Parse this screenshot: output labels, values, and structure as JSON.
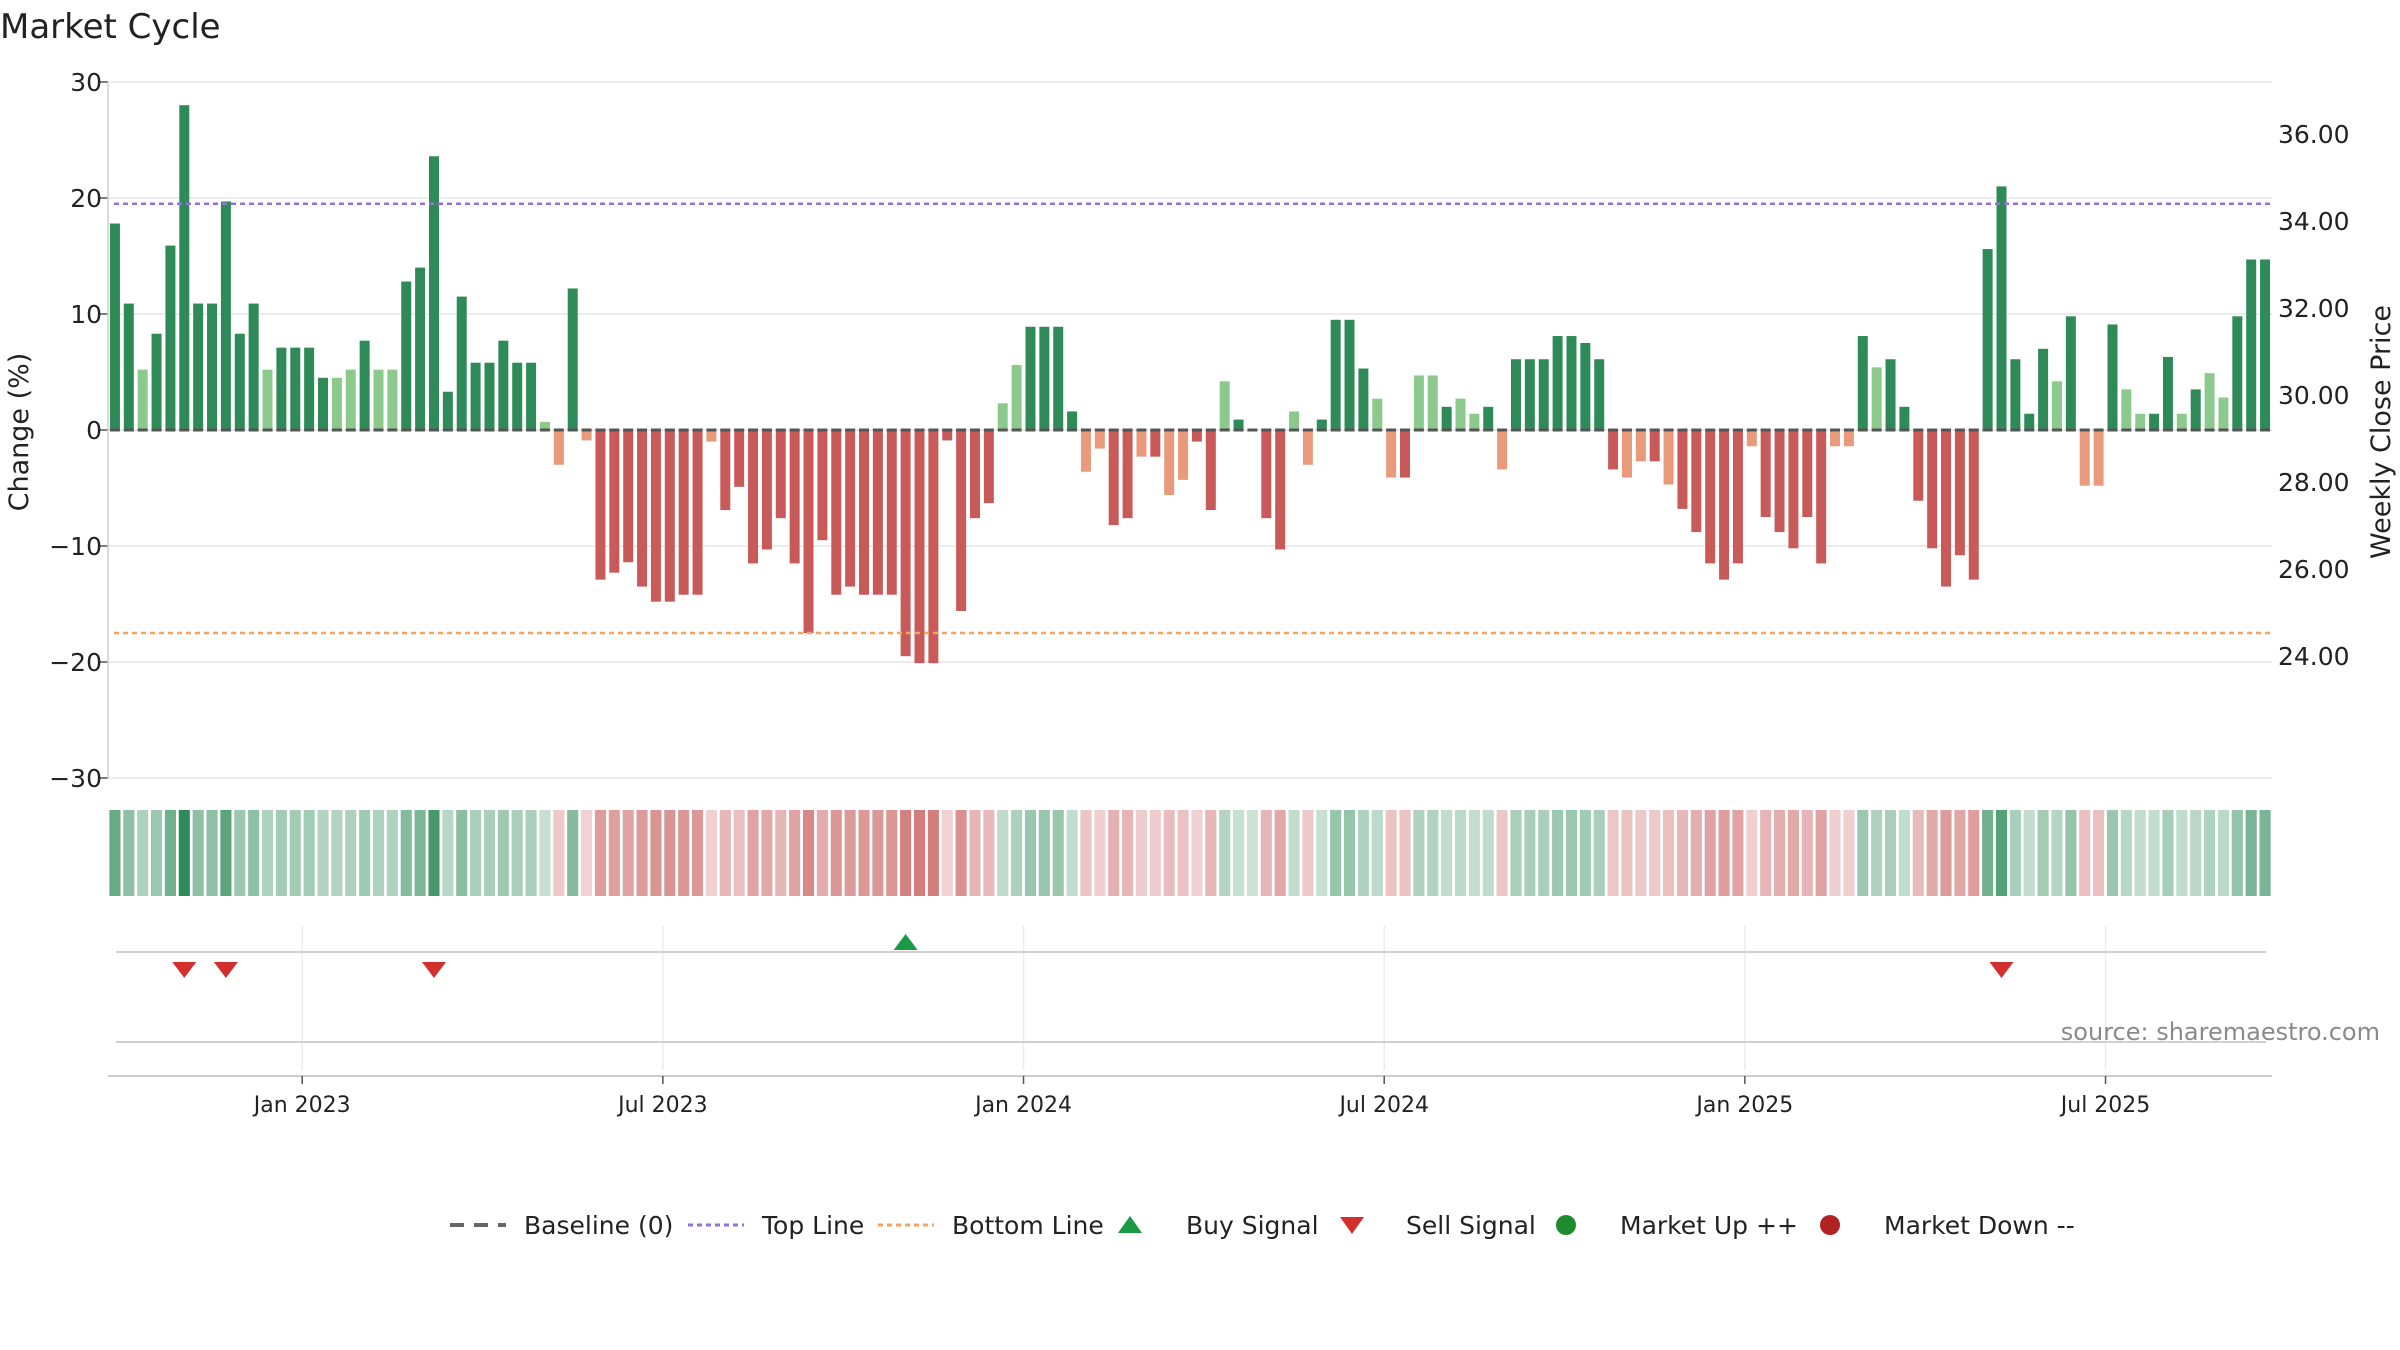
{
  "chart_data": {
    "type": "bar",
    "title": "Market Cycle",
    "ylabel": "Change (%)",
    "y2label": "Weekly Close Price",
    "ylim": [
      -30,
      30
    ],
    "y2lim": [
      21.2,
      37.2
    ],
    "y_ticks": [
      30,
      20,
      10,
      0,
      -10,
      -20,
      -30
    ],
    "y_tick_labels": [
      "30",
      "20",
      "10",
      "0",
      "−10",
      "−20",
      "−30"
    ],
    "y2_ticks": [
      36,
      34,
      32,
      30,
      28,
      26,
      24
    ],
    "y2_tick_labels": [
      "36.00",
      "34.00",
      "32.00",
      "30.00",
      "28.00",
      "26.00",
      "24.00"
    ],
    "x_tick_labels": [
      "Jan 2023",
      "Jul 2023",
      "Jan 2024",
      "Jul 2024",
      "Jan 2025",
      "Jul 2025"
    ],
    "x_tick_bar_index": [
      14,
      40,
      66,
      92,
      118,
      144
    ],
    "top_line": 19.5,
    "bottom_line": -17.5,
    "values": [
      17.8,
      10.9,
      5.2,
      8.3,
      15.9,
      28,
      10.9,
      10.9,
      19.7,
      8.3,
      10.9,
      5.2,
      7.1,
      7.1,
      7.1,
      4.5,
      4.5,
      5.2,
      7.7,
      5.2,
      5.2,
      12.8,
      14,
      23.6,
      3.3,
      11.5,
      5.8,
      5.8,
      7.7,
      5.8,
      5.8,
      0.7,
      -3,
      12.2,
      -0.9,
      -12.9,
      -12.3,
      -11.4,
      -13.5,
      -14.8,
      -14.8,
      -14.2,
      -14.2,
      -1,
      -6.9,
      -4.9,
      -11.5,
      -10.3,
      -7.6,
      -11.5,
      -17.5,
      -9.5,
      -14.2,
      -13.5,
      -14.2,
      -14.2,
      -14.2,
      -19.5,
      -20.1,
      -20.1,
      -0.9,
      -15.6,
      -7.6,
      -6.3,
      2.3,
      5.6,
      8.9,
      8.9,
      8.9,
      1.6,
      -3.6,
      -1.6,
      -8.2,
      -7.6,
      -2.3,
      -2.3,
      -5.6,
      -4.3,
      -1,
      -6.9,
      4.2,
      0.9,
      0,
      -7.6,
      -10.3,
      1.6,
      -3,
      0.9,
      9.5,
      9.5,
      5.3,
      2.7,
      -4.1,
      -4.1,
      4.7,
      4.7,
      2,
      2.7,
      1.4,
      2,
      -3.4,
      6.1,
      6.1,
      6.1,
      8.1,
      8.1,
      7.5,
      6.1,
      -3.4,
      -4.1,
      -2.7,
      -2.7,
      -4.7,
      -6.8,
      -8.8,
      -11.5,
      -12.9,
      -11.5,
      -1.4,
      -7.5,
      -8.8,
      -10.2,
      -7.5,
      -11.5,
      -1.4,
      -1.4,
      8.1,
      5.4,
      6.1,
      2,
      -6.1,
      -10.2,
      -13.5,
      -10.8,
      -12.9,
      15.6,
      21,
      6.1,
      1.4,
      7,
      4.2,
      9.8,
      -4.8,
      -4.8,
      9.1,
      3.5,
      1.4,
      1.4,
      6.3,
      1.4,
      3.5,
      4.9,
      2.8,
      9.8,
      14.7,
      14.7
    ],
    "series": [
      {
        "name": "Baseline (0)"
      },
      {
        "name": "Top Line"
      },
      {
        "name": "Bottom Line"
      },
      {
        "name": "Buy Signal",
        "bar_index": [
          57
        ]
      },
      {
        "name": "Sell Signal",
        "bar_index": [
          5,
          8,
          23,
          136
        ]
      },
      {
        "name": "Market Up ++"
      },
      {
        "name": "Market Down --"
      }
    ],
    "legend_position": "bottom-center",
    "grid": true,
    "annotation": "source: sharemaestro.com",
    "colors": {
      "positive_strong": "#2e8b57",
      "positive_weak": "#8cc98c",
      "negative_strong": "#c85a5a",
      "negative_weak": "#e89a7a",
      "top_line": "#9370db",
      "bottom_line": "#f4a460",
      "buy": "#1a9a45",
      "sell": "#d32f2f",
      "market_up": "#1e8b2e",
      "market_down": "#b22222",
      "baseline": "#666666"
    }
  }
}
